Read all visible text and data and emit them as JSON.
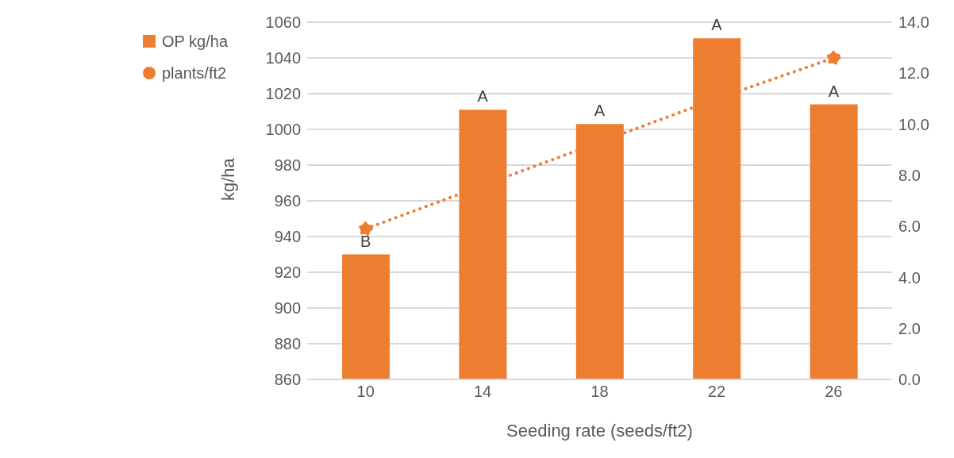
{
  "chart_data": {
    "type": "bar",
    "xlabel": "Seeding rate (seeds/ft2)",
    "ylabel": "kg/ha",
    "categories": [
      "10",
      "14",
      "18",
      "22",
      "26"
    ],
    "series": [
      {
        "name": "OP kg/ha",
        "color": "#ed7d31",
        "values": [
          930,
          1011,
          1003,
          1051,
          1014
        ]
      },
      {
        "name": "plants/ft2",
        "type": "line",
        "axis": "y2",
        "color": "#ed7d31",
        "marker": "circle",
        "line_style": "dotted",
        "values": [
          5.9,
          7.6,
          9.3,
          11.0,
          12.6
        ]
      }
    ],
    "ylim": [
      860,
      1060
    ],
    "yticks": [
      860,
      880,
      900,
      920,
      940,
      960,
      980,
      1000,
      1020,
      1040,
      1060
    ],
    "y2lim": [
      0,
      14
    ],
    "y2ticks": [
      {
        "value": 0,
        "label": "0.0"
      },
      {
        "value": 2,
        "label": "2.0"
      },
      {
        "value": 4,
        "label": "4.0"
      },
      {
        "value": 6,
        "label": "6.0"
      },
      {
        "value": 8,
        "label": "8.0"
      },
      {
        "value": 10,
        "label": "10.0"
      },
      {
        "value": 12,
        "label": "12.0"
      },
      {
        "value": 14,
        "label": "14.0"
      }
    ],
    "grid": "y",
    "legend": "top left",
    "annotations": [
      {
        "text": "B",
        "x": "10",
        "y": 930
      },
      {
        "text": "A",
        "x": "14",
        "y": 1011
      },
      {
        "text": "A",
        "x": "18",
        "y": 1003
      },
      {
        "text": "A",
        "x": "22",
        "y": 1051
      },
      {
        "text": "A",
        "x": "26",
        "y": 1014
      }
    ]
  }
}
